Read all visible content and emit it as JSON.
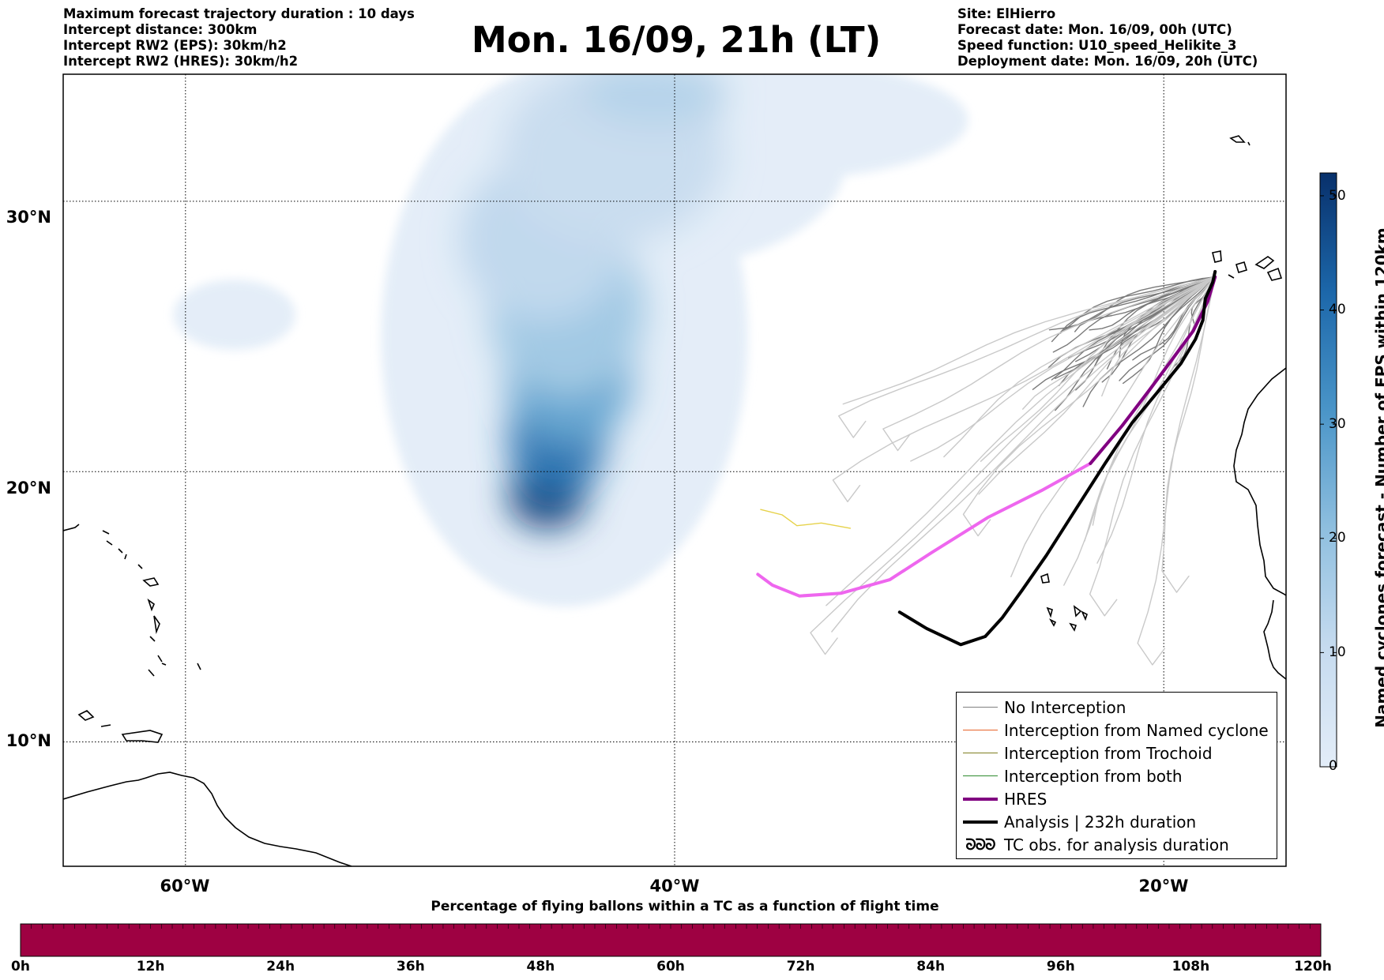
{
  "header_left": [
    "Maximum forecast trajectory duration : 10 days",
    "Intercept distance: 300km",
    "Intercept RW2 (EPS):  30km/h2",
    "Intercept RW2 (HRES): 30km/h2"
  ],
  "header_right": [
    "Site: ElHierro",
    "Forecast date: Mon. 16/09, 00h (UTC)",
    "Speed function: U10_speed_Helikite_3",
    "Deployment date: Mon. 16/09, 20h (UTC)"
  ],
  "title": "Mon. 16/09, 21h (LT)",
  "map": {
    "lat_labels": [
      "30°N",
      "20°N",
      "10°N"
    ],
    "lon_labels": [
      "60°W",
      "40°W",
      "20°W"
    ],
    "grid_lats": [
      30,
      20,
      10
    ],
    "grid_lons": [
      -60,
      -40,
      -20
    ],
    "extent": {
      "lon_min": -65,
      "lon_max": -15,
      "lat_min": 5.4,
      "lat_max": 34.7
    },
    "launch_site": {
      "lon": -17.9,
      "lat": 27.2,
      "name": "ElHierro"
    },
    "analysis_track": [
      [
        -17.9,
        27.4
      ],
      [
        -18.0,
        27.0
      ],
      [
        -18.3,
        26.4
      ],
      [
        -18.4,
        25.6
      ],
      [
        -18.7,
        24.9
      ],
      [
        -19.3,
        24.0
      ],
      [
        -20.2,
        23.0
      ],
      [
        -21.3,
        21.8
      ],
      [
        -22.4,
        20.3
      ],
      [
        -23.6,
        18.6
      ],
      [
        -24.8,
        16.9
      ],
      [
        -25.8,
        15.6
      ],
      [
        -26.6,
        14.6
      ],
      [
        -27.3,
        13.9
      ],
      [
        -28.3,
        13.6
      ],
      [
        -29.7,
        14.2
      ],
      [
        -30.8,
        14.8
      ]
    ],
    "hres_track": [
      [
        -17.9,
        27.2
      ],
      [
        -18.2,
        26.3
      ],
      [
        -18.8,
        25.2
      ],
      [
        -19.7,
        24.1
      ],
      [
        -20.6,
        23.0
      ],
      [
        -21.7,
        21.7
      ],
      [
        -23.0,
        20.3
      ],
      [
        -25.0,
        19.3
      ],
      [
        -27.2,
        18.3
      ],
      [
        -29.5,
        17.0
      ],
      [
        -31.2,
        16.0
      ],
      [
        -33.2,
        15.5
      ],
      [
        -34.9,
        15.4
      ],
      [
        -36.0,
        15.8
      ],
      [
        -36.6,
        16.2
      ]
    ],
    "yellow_track": [
      [
        -36.5,
        18.6
      ],
      [
        -35.6,
        18.4
      ],
      [
        -35.0,
        18.0
      ],
      [
        -34.0,
        18.1
      ],
      [
        -32.8,
        17.9
      ]
    ],
    "eps_density_blobs": [
      {
        "lon": -45.2,
        "lat": 19.1,
        "rlon": 1.6,
        "rlat": 1.2,
        "value": 50
      },
      {
        "lon": -44.8,
        "lat": 21.3,
        "rlon": 2.0,
        "rlat": 2.2,
        "value": 40
      },
      {
        "lon": -44.3,
        "lat": 23.6,
        "rlon": 2.6,
        "rlat": 2.6,
        "value": 28
      },
      {
        "lon": -44.4,
        "lat": 26.0,
        "rlon": 3.2,
        "rlat": 3.2,
        "value": 18
      },
      {
        "lon": -45.4,
        "lat": 28.6,
        "rlon": 3.4,
        "rlat": 3.0,
        "value": 12
      },
      {
        "lon": -42.5,
        "lat": 31.8,
        "rlon": 4.6,
        "rlat": 3.4,
        "value": 10
      },
      {
        "lon": -40.8,
        "lat": 34.0,
        "rlon": 3.0,
        "rlat": 1.2,
        "value": 14
      }
    ],
    "eps_density_max": 52
  },
  "legend": [
    {
      "label": "No Interception",
      "color": "#808080",
      "width": 1.5
    },
    {
      "label": "Interception from Named cyclone",
      "color": "#e8642a",
      "width": 1.5
    },
    {
      "label": "Interception from Trochoid",
      "color": "#7f7f20",
      "width": 1.5
    },
    {
      "label": "Interception from both",
      "color": "#2e8b2e",
      "width": 1.5
    },
    {
      "label": "HRES",
      "color": "#800080",
      "width": 4
    },
    {
      "label": "Analysis | 232h duration",
      "color": "#000000",
      "width": 4
    },
    {
      "label": "TC obs. for analysis duration",
      "color": "#000000",
      "symbol": "ᘐᘐᘐ"
    }
  ],
  "colorbar": {
    "title": "Named cyclones forecast - Number of EPS within 120km",
    "min": 0,
    "max": 52,
    "ticks": [
      "0",
      "10",
      "20",
      "30",
      "40",
      "50"
    ],
    "color_low": "#e3edf8",
    "color_high": "#08306b"
  },
  "hours_bar": {
    "title": "Percentage of flying ballons within a TC as a function of flight time",
    "labels": [
      "0h",
      "12h",
      "24h",
      "36h",
      "48h",
      "60h",
      "72h",
      "84h",
      "96h",
      "108h",
      "120h"
    ],
    "color": "#9e0142",
    "percent": 0
  }
}
